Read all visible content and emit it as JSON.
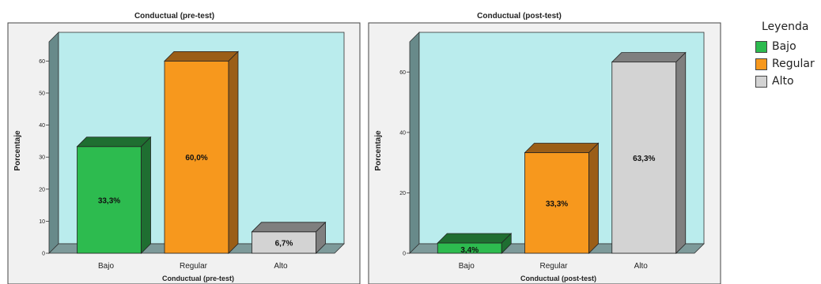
{
  "chart_data": [
    {
      "type": "bar",
      "title": "Conductual (pre-test)",
      "xlabel": "Conductual (pre-test)",
      "ylabel": "Porcentaje",
      "categories": [
        "Bajo",
        "Regular",
        "Alto"
      ],
      "values": [
        33.3,
        60.0,
        6.7
      ],
      "data_labels": [
        "33,3%",
        "60,0%",
        "6,7%"
      ],
      "yticks": [
        0,
        10,
        20,
        30,
        40,
        50,
        60
      ],
      "ylim": [
        0,
        66
      ],
      "grid": false
    },
    {
      "type": "bar",
      "title": "Conductual (post-test)",
      "xlabel": "Conductual (post-test)",
      "ylabel": "Porcentaje",
      "categories": [
        "Bajo",
        "Regular",
        "Alto"
      ],
      "values": [
        3.4,
        33.3,
        63.3
      ],
      "data_labels": [
        "3,4%",
        "33,3%",
        "63,3%"
      ],
      "yticks": [
        0,
        20,
        40,
        60
      ],
      "ylim": [
        0,
        70
      ],
      "grid": false
    }
  ],
  "legend": {
    "title": "Leyenda",
    "position": "right",
    "items": [
      {
        "label": "Bajo",
        "color": "#2dbb4f"
      },
      {
        "label": "Regular",
        "color": "#f7981d"
      },
      {
        "label": "Alto",
        "color": "#d3d3d3"
      }
    ]
  },
  "colors": {
    "plot_back": "#baeced",
    "floor": "#7d9a9a",
    "wall_side": "#688a8a",
    "panel_bg": "#f1f1f1",
    "bar_sides": [
      "#1f6e31",
      "#9b5e17",
      "#7f7f7f"
    ]
  }
}
